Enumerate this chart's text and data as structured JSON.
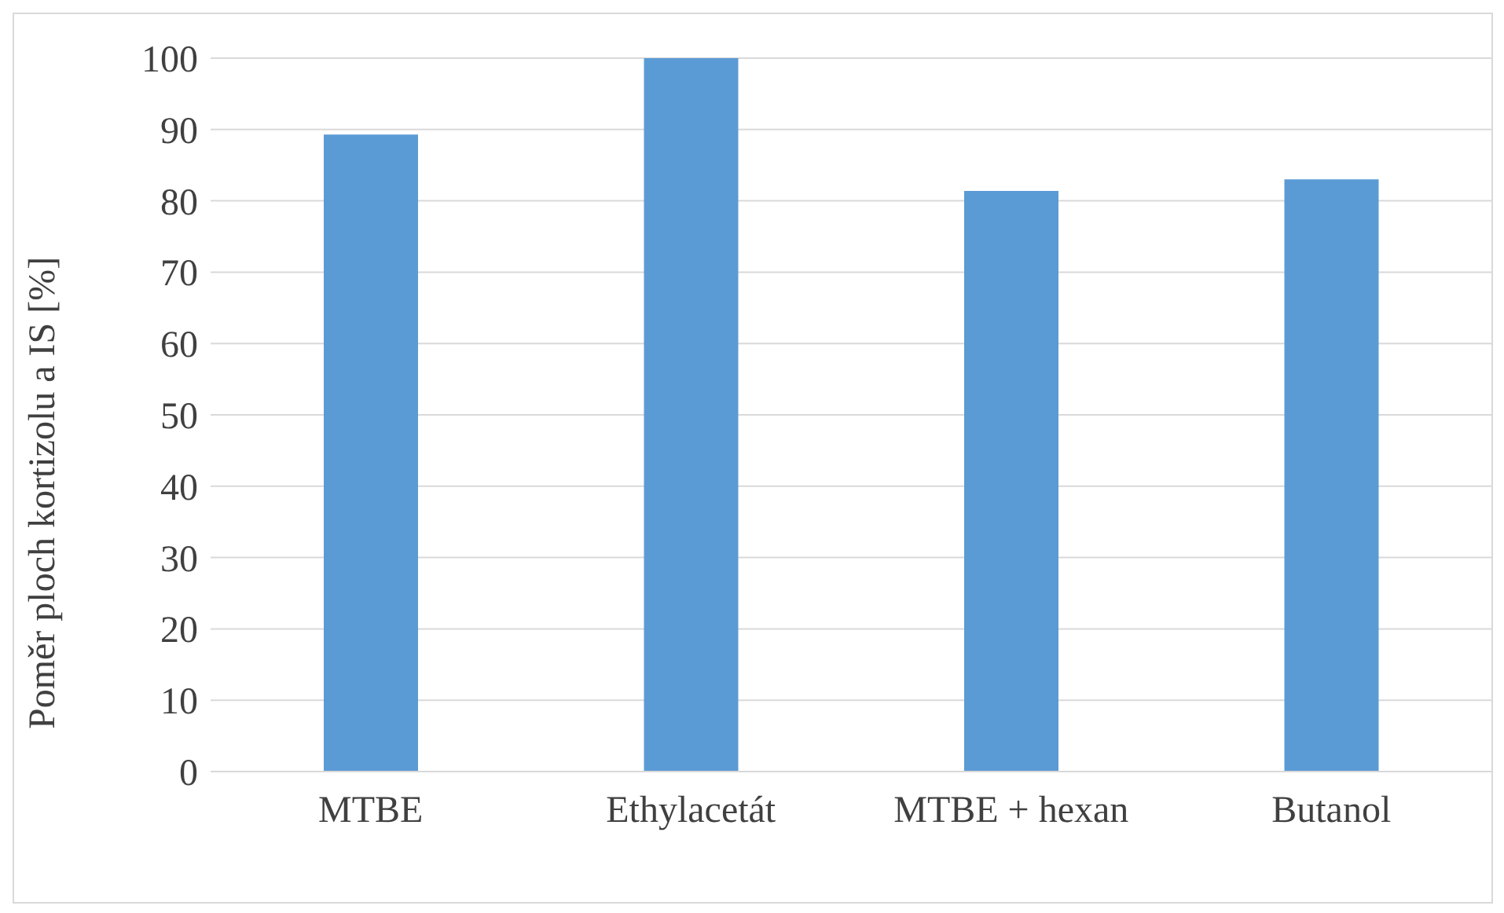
{
  "chart_data": {
    "type": "bar",
    "ylabel": "Poměr ploch kortizolu a IS [%]",
    "categories": [
      "MTBE",
      "Ethylacetát",
      "MTBE + hexan",
      "Butanol"
    ],
    "values": [
      89.3,
      100,
      81.4,
      83.0
    ],
    "color": "#5b9bd5",
    "ylim": [
      0,
      100
    ],
    "yticks": [
      0,
      10,
      20,
      30,
      40,
      50,
      60,
      70,
      80,
      90,
      100
    ],
    "grid": "y"
  }
}
